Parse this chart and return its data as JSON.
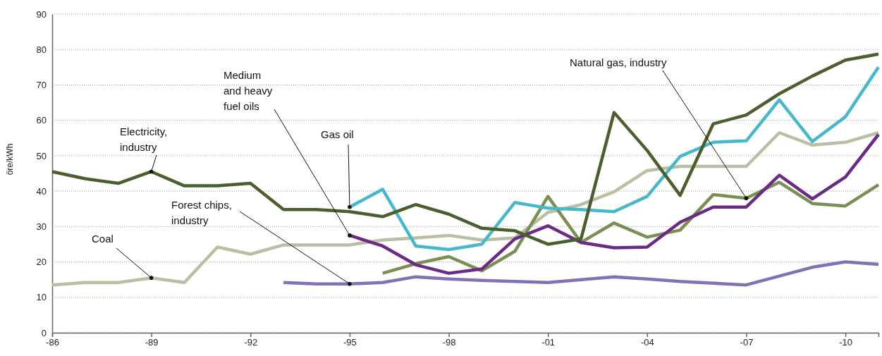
{
  "chart_data": {
    "type": "line",
    "ylabel": "öre/kWh",
    "categories": [
      "-86",
      null,
      null,
      "-89",
      null,
      null,
      "-92",
      null,
      null,
      "-95",
      null,
      null,
      "-98",
      null,
      null,
      "-01",
      null,
      null,
      "-04",
      null,
      null,
      "-07",
      null,
      null,
      "-10",
      null
    ],
    "ylim": [
      0,
      90
    ],
    "yticks": [
      0,
      10,
      20,
      30,
      40,
      50,
      60,
      70,
      80,
      90
    ],
    "grid": "y",
    "marker": "none",
    "line_style": "solid",
    "series": [
      {
        "color": "#b9bfa2",
        "values": [
          13.5,
          14.2,
          14.2,
          15.5,
          14.2,
          24.2,
          22.2,
          24.8,
          24.8,
          24.8,
          26.2,
          26.8,
          27.5,
          26.2,
          26.8,
          34,
          36.2,
          39.8,
          45.8,
          47,
          47,
          47,
          56.5,
          53,
          53.8,
          56.5
        ]
      },
      {
        "color": "#8470b4",
        "values": [
          null,
          null,
          null,
          null,
          null,
          null,
          null,
          14.2,
          13.8,
          13.8,
          14.2,
          15.8,
          15.2,
          14.8,
          14.5,
          14.2,
          15,
          15.8,
          15.2,
          14.5,
          14,
          13.5,
          16,
          18.5,
          20,
          19.3
        ]
      },
      {
        "color": "#7a8f52",
        "values": [
          null,
          null,
          null,
          null,
          null,
          null,
          null,
          null,
          null,
          null,
          16.8,
          19.5,
          21.5,
          17.5,
          23,
          38.5,
          25.5,
          31,
          27,
          29,
          39,
          38,
          42.5,
          36.5,
          35.8,
          41.8
        ]
      },
      {
        "color": "#6b2a86",
        "values": [
          null,
          null,
          null,
          null,
          null,
          null,
          null,
          null,
          null,
          27.5,
          24.5,
          19.2,
          16.8,
          18,
          26.5,
          30.2,
          25.5,
          24,
          24.2,
          31.2,
          35.5,
          35.5,
          44.5,
          37.8,
          44,
          56
        ]
      },
      {
        "color": "#45b8cc",
        "values": [
          null,
          null,
          null,
          null,
          null,
          null,
          null,
          null,
          null,
          35.5,
          40.5,
          24.5,
          23.5,
          25,
          36.8,
          35.2,
          34.8,
          34.2,
          38.5,
          49.8,
          53.8,
          54.2,
          65.8,
          54,
          61,
          75
        ]
      },
      {
        "color": "#4a5e2e",
        "values": [
          45.5,
          43.5,
          42.2,
          45.5,
          41.5,
          41.5,
          42.2,
          34.8,
          34.8,
          34.2,
          32.8,
          36.2,
          33.5,
          29.5,
          28.8,
          25,
          26.5,
          62.2,
          51.5,
          38.8,
          59,
          61.5,
          67.5,
          72.5,
          77,
          78.7
        ]
      }
    ],
    "annotations": [
      {
        "text": "Electricity,\nindustry",
        "x": "-89",
        "y": 45.5
      },
      {
        "text": "Coal",
        "x": "-89",
        "y": 15.5
      },
      {
        "text": "Forest chips,\nindustry",
        "x": "-95",
        "y": 13.8
      },
      {
        "text": "Medium\nand heavy\nfuel oils",
        "x": "-95",
        "y": 27.5
      },
      {
        "text": "Gas oil",
        "x": "-95",
        "y": 35.5
      },
      {
        "text": "Natural gas, industry",
        "x": "-07",
        "y": 38
      }
    ]
  }
}
